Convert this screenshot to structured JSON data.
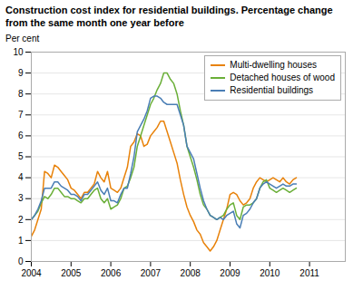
{
  "chart_data": {
    "type": "line",
    "title": "Construction cost index for residential buildings. Percentage change",
    "subtitle": "from the same month one year before",
    "ylabel": "Per cent",
    "xlim": [
      2004,
      2011.9
    ],
    "xticks": [
      2004,
      2005,
      2006,
      2007,
      2008,
      2009,
      2010,
      2011
    ],
    "ylim": [
      0,
      10
    ],
    "yticks": [
      0,
      1,
      2,
      3,
      4,
      5,
      6,
      7,
      8,
      9,
      10
    ],
    "grid": "y",
    "legend": "upper right",
    "x": [
      2004,
      2004.0833333333333,
      2004.1666666666667,
      2004.25,
      2004.3333333333333,
      2004.4166666666667,
      2004.5,
      2004.5833333333333,
      2004.6666666666667,
      2004.75,
      2004.8333333333333,
      2004.9166666666667,
      2005,
      2005.0833333333333,
      2005.1666666666667,
      2005.25,
      2005.3333333333333,
      2005.4166666666667,
      2005.5,
      2005.5833333333333,
      2005.6666666666667,
      2005.75,
      2005.8333333333333,
      2005.9166666666667,
      2006,
      2006.0833333333333,
      2006.1666666666667,
      2006.25,
      2006.3333333333333,
      2006.4166666666667,
      2006.5,
      2006.5833333333333,
      2006.6666666666667,
      2006.75,
      2006.8333333333333,
      2006.9166666666667,
      2007,
      2007.0833333333333,
      2007.1666666666667,
      2007.25,
      2007.3333333333333,
      2007.4166666666667,
      2007.5,
      2007.5833333333333,
      2007.6666666666667,
      2007.75,
      2007.8333333333333,
      2007.9166666666667,
      2008,
      2008.0833333333333,
      2008.1666666666667,
      2008.25,
      2008.3333333333333,
      2008.4166666666667,
      2008.5,
      2008.5833333333333,
      2008.6666666666667,
      2008.75,
      2008.8333333333333,
      2008.9166666666667,
      2009,
      2009.0833333333333,
      2009.1666666666667,
      2009.25,
      2009.3333333333333,
      2009.4166666666667,
      2009.5,
      2009.5833333333333,
      2009.6666666666667,
      2009.75,
      2009.8333333333333,
      2009.9166666666667,
      2010,
      2010.0833333333333,
      2010.1666666666667,
      2010.25,
      2010.3333333333333,
      2010.4166666666667,
      2010.5,
      2010.5833333333333,
      2010.6666666666667
    ],
    "series": [
      {
        "name": "Multi-dwelling houses",
        "color": "#E8820A",
        "values": [
          1.2,
          1.5,
          2.0,
          2.5,
          4.3,
          4.2,
          4.0,
          4.6,
          4.5,
          4.3,
          4.1,
          3.9,
          3.5,
          3.4,
          3.2,
          3.0,
          3.3,
          3.3,
          3.5,
          3.7,
          4.3,
          4.0,
          3.8,
          4.3,
          3.5,
          3.4,
          3.3,
          3.5,
          4.0,
          4.5,
          5.5,
          5.7,
          6.1,
          6.0,
          5.5,
          5.6,
          6.0,
          6.2,
          6.4,
          6.7,
          6.7,
          6.2,
          5.7,
          5.2,
          4.7,
          3.9,
          3.2,
          2.6,
          2.2,
          1.9,
          1.5,
          1.3,
          0.9,
          0.7,
          0.5,
          0.7,
          1.0,
          1.5,
          2.0,
          2.5,
          3.2,
          3.3,
          3.2,
          2.9,
          2.7,
          2.8,
          3.0,
          3.5,
          3.8,
          4.0,
          3.9,
          3.8,
          3.9,
          4.0,
          3.9,
          3.8,
          4.0,
          3.8,
          3.7,
          3.9,
          4.0
        ]
      },
      {
        "name": "Detached houses of wood",
        "color": "#6AAF38",
        "values": [
          2.0,
          2.2,
          2.4,
          2.8,
          3.1,
          3.0,
          3.2,
          3.5,
          3.5,
          3.3,
          3.1,
          3.1,
          3.0,
          3.0,
          2.9,
          2.8,
          3.0,
          3.0,
          3.2,
          3.4,
          3.5,
          3.0,
          2.8,
          3.0,
          2.5,
          2.6,
          2.7,
          3.0,
          3.5,
          3.6,
          4.0,
          4.5,
          5.5,
          6.0,
          6.5,
          7.0,
          7.5,
          7.8,
          8.2,
          8.5,
          9.0,
          9.0,
          8.7,
          8.5,
          8.0,
          7.2,
          6.5,
          5.5,
          5.0,
          4.5,
          3.9,
          3.2,
          2.7,
          2.5,
          2.2,
          2.1,
          2.0,
          2.1,
          2.2,
          2.5,
          2.7,
          2.8,
          2.2,
          2.0,
          2.6,
          2.7,
          2.7,
          2.8,
          3.0,
          3.5,
          3.8,
          3.9,
          3.5,
          3.4,
          3.3,
          3.4,
          3.5,
          3.4,
          3.3,
          3.4,
          3.5
        ]
      },
      {
        "name": "Residential buildings",
        "color": "#4A7EB5",
        "values": [
          2.0,
          2.2,
          2.5,
          2.9,
          3.5,
          3.5,
          3.5,
          3.8,
          3.8,
          3.6,
          3.5,
          3.4,
          3.2,
          3.2,
          3.1,
          2.9,
          3.2,
          3.2,
          3.4,
          3.6,
          3.8,
          3.4,
          3.2,
          3.5,
          2.9,
          2.9,
          2.8,
          3.2,
          3.5,
          3.5,
          4.2,
          5.0,
          6.2,
          6.5,
          6.8,
          7.2,
          7.8,
          7.9,
          7.9,
          7.8,
          7.6,
          7.5,
          7.5,
          7.5,
          7.5,
          7.0,
          6.5,
          5.5,
          5.2,
          4.9,
          4.2,
          3.5,
          2.9,
          2.5,
          2.2,
          2.1,
          2.0,
          2.1,
          2.0,
          2.2,
          2.3,
          2.4,
          1.8,
          1.6,
          2.2,
          2.3,
          2.5,
          2.8,
          3.0,
          3.5,
          3.7,
          3.8,
          3.7,
          3.6,
          3.5,
          3.6,
          3.7,
          3.6,
          3.6,
          3.7,
          3.7
        ]
      }
    ]
  }
}
